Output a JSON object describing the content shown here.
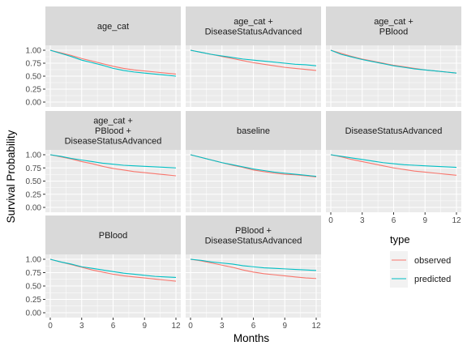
{
  "chart_data": {
    "type": "line",
    "xlabel": "Months",
    "ylabel": "Survival Probability",
    "xlim": [
      0,
      12
    ],
    "ylim": [
      0,
      1
    ],
    "x_ticks": [
      0,
      3,
      6,
      9,
      12
    ],
    "y_ticks": [
      0,
      0.25,
      0.5,
      0.75,
      1
    ],
    "y_tick_labels": [
      "0.00",
      "0.25",
      "0.50",
      "0.75",
      "1.00"
    ],
    "grid": true,
    "legend": {
      "title": "type",
      "placement": "right",
      "entries": [
        {
          "name": "observed",
          "color": "#F8766D"
        },
        {
          "name": "predicted",
          "color": "#00BFC4"
        }
      ]
    },
    "x": [
      0,
      1,
      2,
      3,
      4,
      5,
      6,
      7,
      8,
      9,
      10,
      11,
      12
    ],
    "panels": [
      {
        "strip": [
          "age_cat"
        ],
        "series": [
          {
            "name": "observed",
            "values": [
              1.0,
              0.95,
              0.9,
              0.84,
              0.79,
              0.74,
              0.69,
              0.65,
              0.62,
              0.6,
              0.58,
              0.56,
              0.54
            ]
          },
          {
            "name": "predicted",
            "values": [
              1.0,
              0.94,
              0.88,
              0.81,
              0.76,
              0.71,
              0.65,
              0.61,
              0.58,
              0.56,
              0.54,
              0.52,
              0.5
            ]
          }
        ]
      },
      {
        "strip": [
          "age_cat +",
          "DiseaseStatusAdvanced"
        ],
        "series": [
          {
            "name": "observed",
            "values": [
              1.0,
              0.96,
              0.92,
              0.88,
              0.84,
              0.8,
              0.76,
              0.73,
              0.7,
              0.67,
              0.65,
              0.63,
              0.61
            ]
          },
          {
            "name": "predicted",
            "values": [
              1.0,
              0.96,
              0.92,
              0.89,
              0.86,
              0.83,
              0.81,
              0.79,
              0.77,
              0.75,
              0.73,
              0.72,
              0.7
            ]
          }
        ]
      },
      {
        "strip": [
          "age_cat +",
          "PBlood"
        ],
        "series": [
          {
            "name": "observed",
            "values": [
              1.0,
              0.94,
              0.88,
              0.83,
              0.79,
              0.75,
              0.71,
              0.68,
              0.65,
              0.62,
              0.6,
              0.58,
              0.56
            ]
          },
          {
            "name": "predicted",
            "values": [
              1.0,
              0.92,
              0.87,
              0.82,
              0.78,
              0.74,
              0.7,
              0.67,
              0.64,
              0.62,
              0.6,
              0.58,
              0.56
            ]
          }
        ]
      },
      {
        "strip": [
          "age_cat +",
          "PBlood +",
          "DiseaseStatusAdvanced"
        ],
        "series": [
          {
            "name": "observed",
            "values": [
              1.0,
              0.96,
              0.92,
              0.87,
              0.83,
              0.78,
              0.74,
              0.71,
              0.68,
              0.66,
              0.64,
              0.62,
              0.6
            ]
          },
          {
            "name": "predicted",
            "values": [
              1.0,
              0.97,
              0.93,
              0.9,
              0.87,
              0.84,
              0.82,
              0.8,
              0.79,
              0.78,
              0.77,
              0.76,
              0.75
            ]
          }
        ]
      },
      {
        "strip": [
          "baseline"
        ],
        "series": [
          {
            "name": "observed",
            "values": [
              1.0,
              0.95,
              0.9,
              0.85,
              0.8,
              0.76,
              0.71,
              0.68,
              0.65,
              0.63,
              0.62,
              0.6,
              0.58
            ]
          },
          {
            "name": "predicted",
            "values": [
              1.0,
              0.95,
              0.9,
              0.85,
              0.81,
              0.77,
              0.73,
              0.7,
              0.67,
              0.65,
              0.63,
              0.61,
              0.59
            ]
          }
        ]
      },
      {
        "strip": [
          "DiseaseStatusAdvanced"
        ],
        "series": [
          {
            "name": "observed",
            "values": [
              1.0,
              0.96,
              0.91,
              0.87,
              0.83,
              0.79,
              0.75,
              0.72,
              0.69,
              0.67,
              0.65,
              0.63,
              0.61
            ]
          },
          {
            "name": "predicted",
            "values": [
              1.0,
              0.97,
              0.94,
              0.91,
              0.88,
              0.85,
              0.83,
              0.81,
              0.8,
              0.79,
              0.78,
              0.77,
              0.76
            ]
          }
        ]
      },
      {
        "strip": [
          "PBlood"
        ],
        "series": [
          {
            "name": "observed",
            "values": [
              1.0,
              0.95,
              0.9,
              0.85,
              0.8,
              0.76,
              0.72,
              0.69,
              0.67,
              0.65,
              0.63,
              0.61,
              0.59
            ]
          },
          {
            "name": "predicted",
            "values": [
              1.0,
              0.95,
              0.91,
              0.86,
              0.83,
              0.8,
              0.77,
              0.74,
              0.72,
              0.7,
              0.68,
              0.67,
              0.66
            ]
          }
        ]
      },
      {
        "strip": [
          "PBlood +",
          "DiseaseStatusAdvanced"
        ],
        "series": [
          {
            "name": "observed",
            "values": [
              1.0,
              0.97,
              0.93,
              0.89,
              0.85,
              0.8,
              0.76,
              0.73,
              0.71,
              0.69,
              0.67,
              0.65,
              0.64
            ]
          },
          {
            "name": "predicted",
            "values": [
              1.0,
              0.98,
              0.95,
              0.93,
              0.91,
              0.88,
              0.86,
              0.84,
              0.83,
              0.82,
              0.81,
              0.8,
              0.79
            ]
          }
        ]
      }
    ]
  }
}
